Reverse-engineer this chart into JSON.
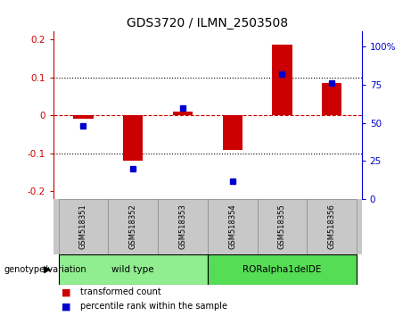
{
  "title": "GDS3720 / ILMN_2503508",
  "samples": [
    "GSM518351",
    "GSM518352",
    "GSM518353",
    "GSM518354",
    "GSM518355",
    "GSM518356"
  ],
  "red_values": [
    -0.01,
    -0.12,
    0.01,
    -0.09,
    0.185,
    0.085
  ],
  "blue_values_pct": [
    48,
    20,
    60,
    12,
    82,
    76
  ],
  "ylim_left": [
    -0.22,
    0.22
  ],
  "ylim_right": [
    0,
    110
  ],
  "yticks_left": [
    -0.2,
    -0.1,
    0.0,
    0.1,
    0.2
  ],
  "yticks_right": [
    0,
    25,
    50,
    75,
    100
  ],
  "ytick_labels_left": [
    "-0.2",
    "-0.1",
    "0",
    "0.1",
    "0.2"
  ],
  "ytick_labels_right": [
    "0",
    "25",
    "50",
    "75",
    "100%"
  ],
  "red_color": "#CC0000",
  "blue_color": "#0000CC",
  "bg_sample_row": "#C8C8C8",
  "groups": [
    {
      "label": "wild type",
      "indices": [
        0,
        1,
        2
      ],
      "color": "#90EE90"
    },
    {
      "label": "RORalpha1delDE",
      "indices": [
        3,
        4,
        5
      ],
      "color": "#55DD55"
    }
  ],
  "genotype_label": "genotype/variation",
  "legend_red": "transformed count",
  "legend_blue": "percentile rank within the sample",
  "bar_width": 0.4,
  "blue_marker_size": 5
}
